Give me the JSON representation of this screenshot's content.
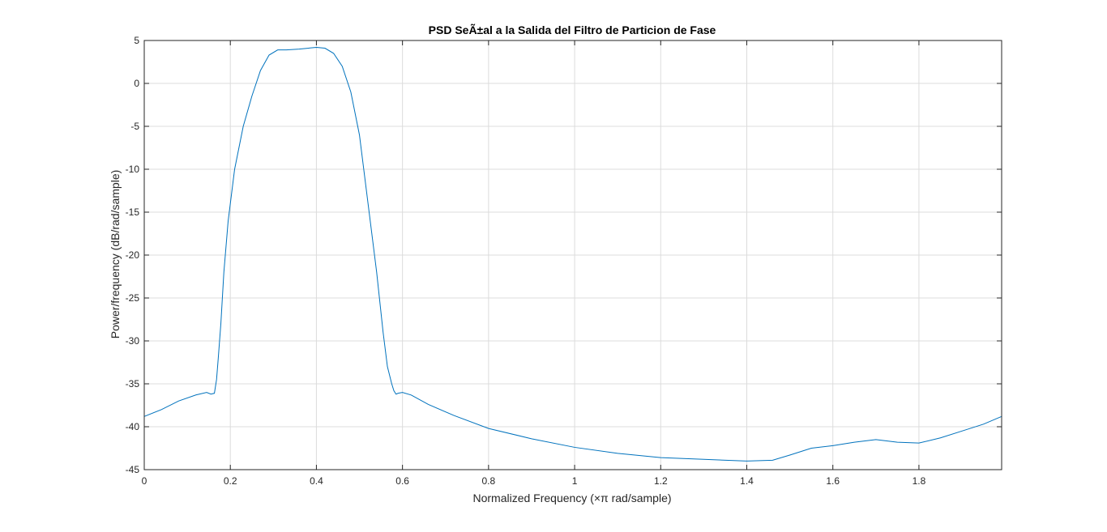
{
  "chart_data": {
    "type": "line",
    "title": "PSD SeÃ±al a la Salida del Filtro de Particion de Fase",
    "xlabel": "Normalized Frequency  (×π rad/sample)",
    "ylabel": "Power/frequency (dB/rad/sample)",
    "xlim": [
      0,
      1.9922
    ],
    "ylim": [
      -45,
      5
    ],
    "xticks": [
      0,
      0.2,
      0.4,
      0.6,
      0.8,
      1,
      1.2,
      1.4,
      1.6,
      1.8
    ],
    "xtick_labels": [
      "0",
      "0.2",
      "0.4",
      "0.6",
      "0.8",
      "1",
      "1.2",
      "1.4",
      "1.6",
      "1.8"
    ],
    "yticks": [
      5,
      0,
      -5,
      -10,
      -15,
      -20,
      -25,
      -30,
      -35,
      -40,
      -45
    ],
    "ytick_labels": [
      "5",
      "0",
      "-5",
      "-10",
      "-15",
      "-20",
      "-25",
      "-30",
      "-35",
      "-40",
      "-45"
    ],
    "grid": true,
    "series": [
      {
        "color": "#0072bd",
        "x": [
          0,
          0.04,
          0.08,
          0.12,
          0.145,
          0.155,
          0.163,
          0.168,
          0.172,
          0.178,
          0.185,
          0.195,
          0.21,
          0.23,
          0.25,
          0.27,
          0.29,
          0.31,
          0.33,
          0.36,
          0.4,
          0.42,
          0.44,
          0.46,
          0.48,
          0.5,
          0.52,
          0.54,
          0.555,
          0.565,
          0.575,
          0.58,
          0.585,
          0.59,
          0.6,
          0.62,
          0.66,
          0.72,
          0.8,
          0.9,
          1.0,
          1.1,
          1.2,
          1.3,
          1.4,
          1.46,
          1.5,
          1.55,
          1.6,
          1.65,
          1.7,
          1.75,
          1.8,
          1.85,
          1.9,
          1.95,
          1.9922
        ],
        "y": [
          -38.8,
          -38.0,
          -37.0,
          -36.3,
          -36.0,
          -36.2,
          -36.1,
          -34.5,
          -32.0,
          -28.0,
          -22.0,
          -16.0,
          -10.0,
          -5.0,
          -1.5,
          1.5,
          3.3,
          3.9,
          3.9,
          4.0,
          4.2,
          4.1,
          3.5,
          2.0,
          -1.0,
          -6.0,
          -14.0,
          -22.0,
          -29.0,
          -33.0,
          -35.0,
          -35.8,
          -36.2,
          -36.1,
          -36.0,
          -36.3,
          -37.4,
          -38.7,
          -40.2,
          -41.4,
          -42.4,
          -43.1,
          -43.6,
          -43.8,
          -44.0,
          -43.9,
          -43.3,
          -42.5,
          -42.2,
          -41.8,
          -41.5,
          -41.8,
          -41.9,
          -41.3,
          -40.5,
          -39.7,
          -38.8
        ]
      }
    ]
  }
}
